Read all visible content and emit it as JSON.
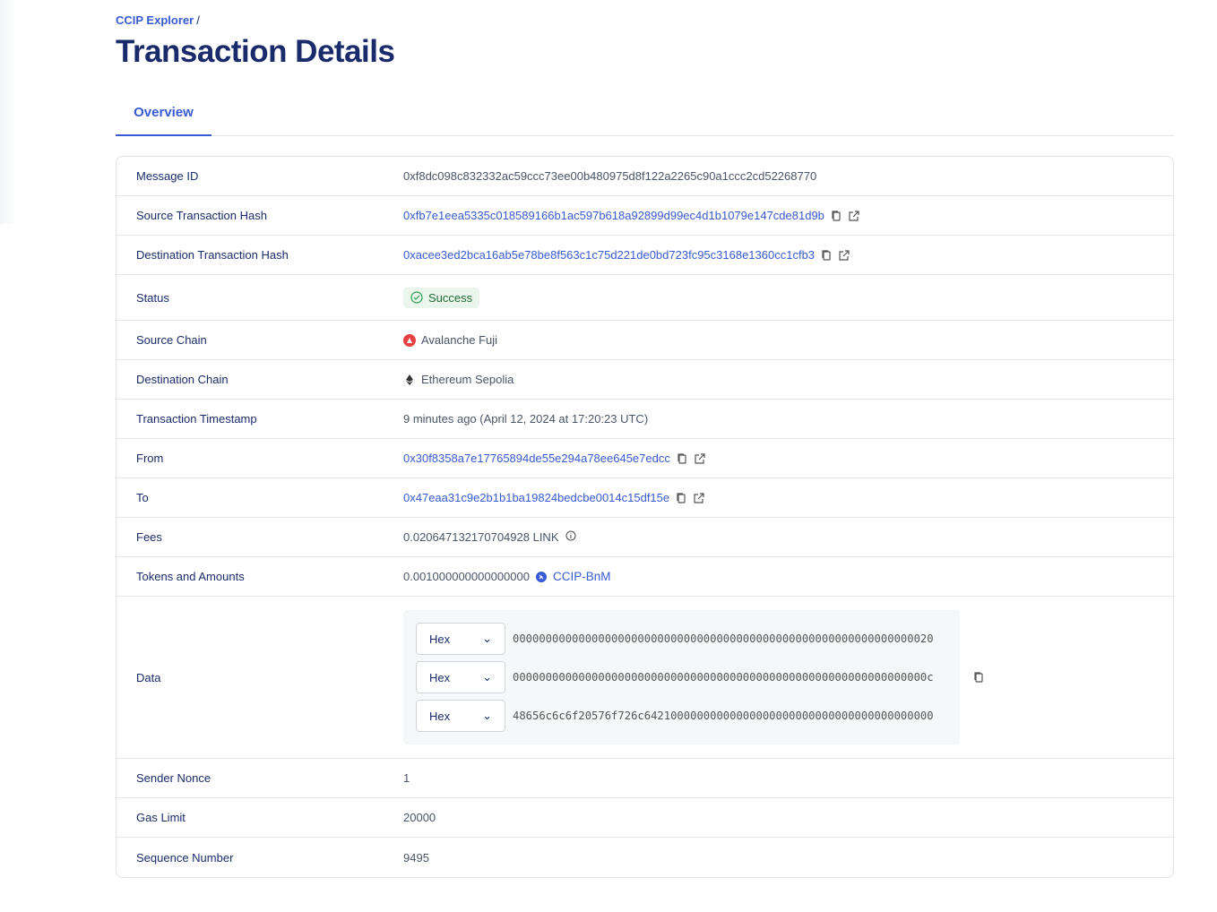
{
  "breadcrumb": {
    "root": "CCIP Explorer",
    "sep": "/"
  },
  "page_title": "Transaction Details",
  "tabs": [
    {
      "label": "Overview",
      "active": true
    }
  ],
  "accent": "#375bd2",
  "rows": {
    "message_id": {
      "label": "Message ID",
      "value": "0xf8dc098c832332ac59ccc73ee00b480975d8f122a2265c90a1ccc2cd52268770"
    },
    "source_tx": {
      "label": "Source Transaction Hash",
      "value": "0xfb7e1eea5335c018589166b1ac597b618a92899d99ec4d1b1079e147cde81d9b"
    },
    "dest_tx": {
      "label": "Destination Transaction Hash",
      "value": "0xacee3ed2bca16ab5e78be8f563c1c75d221de0bd723fc95c3168e1360cc1cfb3"
    },
    "status": {
      "label": "Status",
      "value": "Success"
    },
    "source_chain": {
      "label": "Source Chain",
      "value": "Avalanche Fuji"
    },
    "dest_chain": {
      "label": "Destination Chain",
      "value": "Ethereum Sepolia"
    },
    "timestamp": {
      "label": "Transaction Timestamp",
      "value": "9 minutes ago (April 12, 2024 at 17:20:23 UTC)"
    },
    "from": {
      "label": "From",
      "value": "0x30f8358a7e17765894de55e294a78ee645e7edcc"
    },
    "to": {
      "label": "To",
      "value": "0x47eaa31c9e2b1b1ba19824bedcbe0014c15df15e"
    },
    "fees": {
      "label": "Fees",
      "value": "0.020647132170704928 LINK"
    },
    "tokens": {
      "label": "Tokens and Amounts",
      "amount": "0.001000000000000000",
      "token": "CCIP-BnM"
    },
    "data": {
      "label": "Data",
      "lines": [
        {
          "format": "Hex",
          "value": "0000000000000000000000000000000000000000000000000000000000000020"
        },
        {
          "format": "Hex",
          "value": "000000000000000000000000000000000000000000000000000000000000000c"
        },
        {
          "format": "Hex",
          "value": "48656c6c6f20576f726c64210000000000000000000000000000000000000000"
        }
      ]
    },
    "nonce": {
      "label": "Sender Nonce",
      "value": "1"
    },
    "gas": {
      "label": "Gas Limit",
      "value": "20000"
    },
    "seq": {
      "label": "Sequence Number",
      "value": "9495"
    }
  }
}
